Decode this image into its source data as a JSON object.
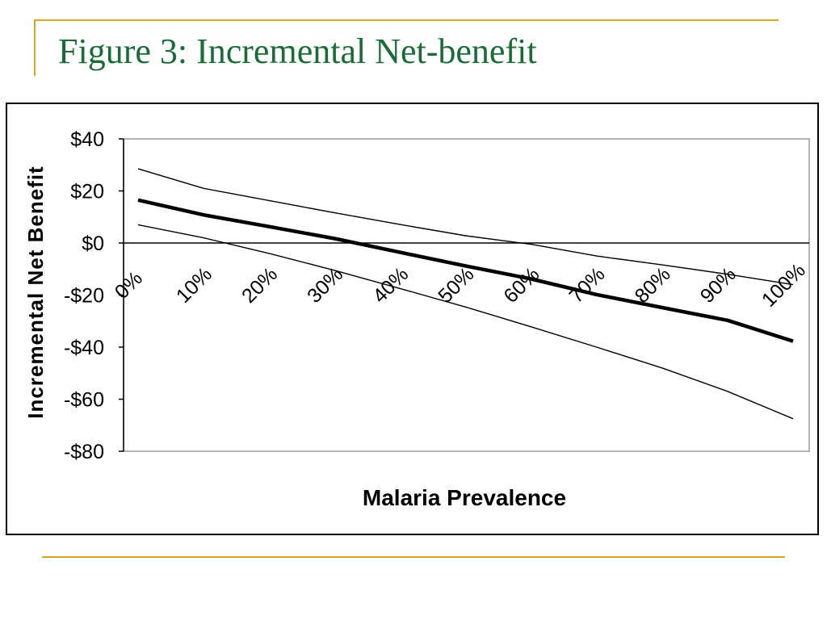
{
  "slide": {
    "title": "Figure 3: Incremental Net-benefit",
    "title_color": "#1b6b38",
    "accent_color": "#d8a520"
  },
  "chart_data": {
    "type": "line",
    "title": "",
    "xlabel": "Malaria Prevalence",
    "ylabel": "Incremental Net Benefit",
    "x": [
      0,
      10,
      20,
      30,
      40,
      50,
      60,
      70,
      80,
      90,
      100
    ],
    "x_tick_labels": [
      "0%",
      "10%",
      "20%",
      "30%",
      "40%",
      "50%",
      "60%",
      "70%",
      "80%",
      "90%",
      "100%"
    ],
    "y_tick_values": [
      40,
      20,
      0,
      -20,
      -40,
      -60,
      -80
    ],
    "y_tick_labels": [
      "$40",
      "$20",
      "$0",
      "-$20",
      "-$40",
      "-$60",
      "-$80"
    ],
    "ylim": [
      -80,
      40
    ],
    "grid": false,
    "zero_line": true,
    "series": [
      {
        "style": "bold",
        "values": [
          16.5,
          10.8,
          6.3,
          1.7,
          -3.6,
          -8.8,
          -13.8,
          -19.8,
          -24.8,
          -29.7,
          -37.7
        ]
      },
      {
        "style": "thin",
        "values": [
          28.5,
          21.0,
          16.3,
          11.6,
          7.1,
          2.8,
          -0.5,
          -5.0,
          -8.4,
          -12.0,
          -16.0
        ]
      },
      {
        "style": "thin",
        "values": [
          7.0,
          2.0,
          -4.0,
          -10.5,
          -17.5,
          -24.6,
          -32.2,
          -40.0,
          -48.0,
          -57.0,
          -67.5
        ]
      }
    ]
  }
}
